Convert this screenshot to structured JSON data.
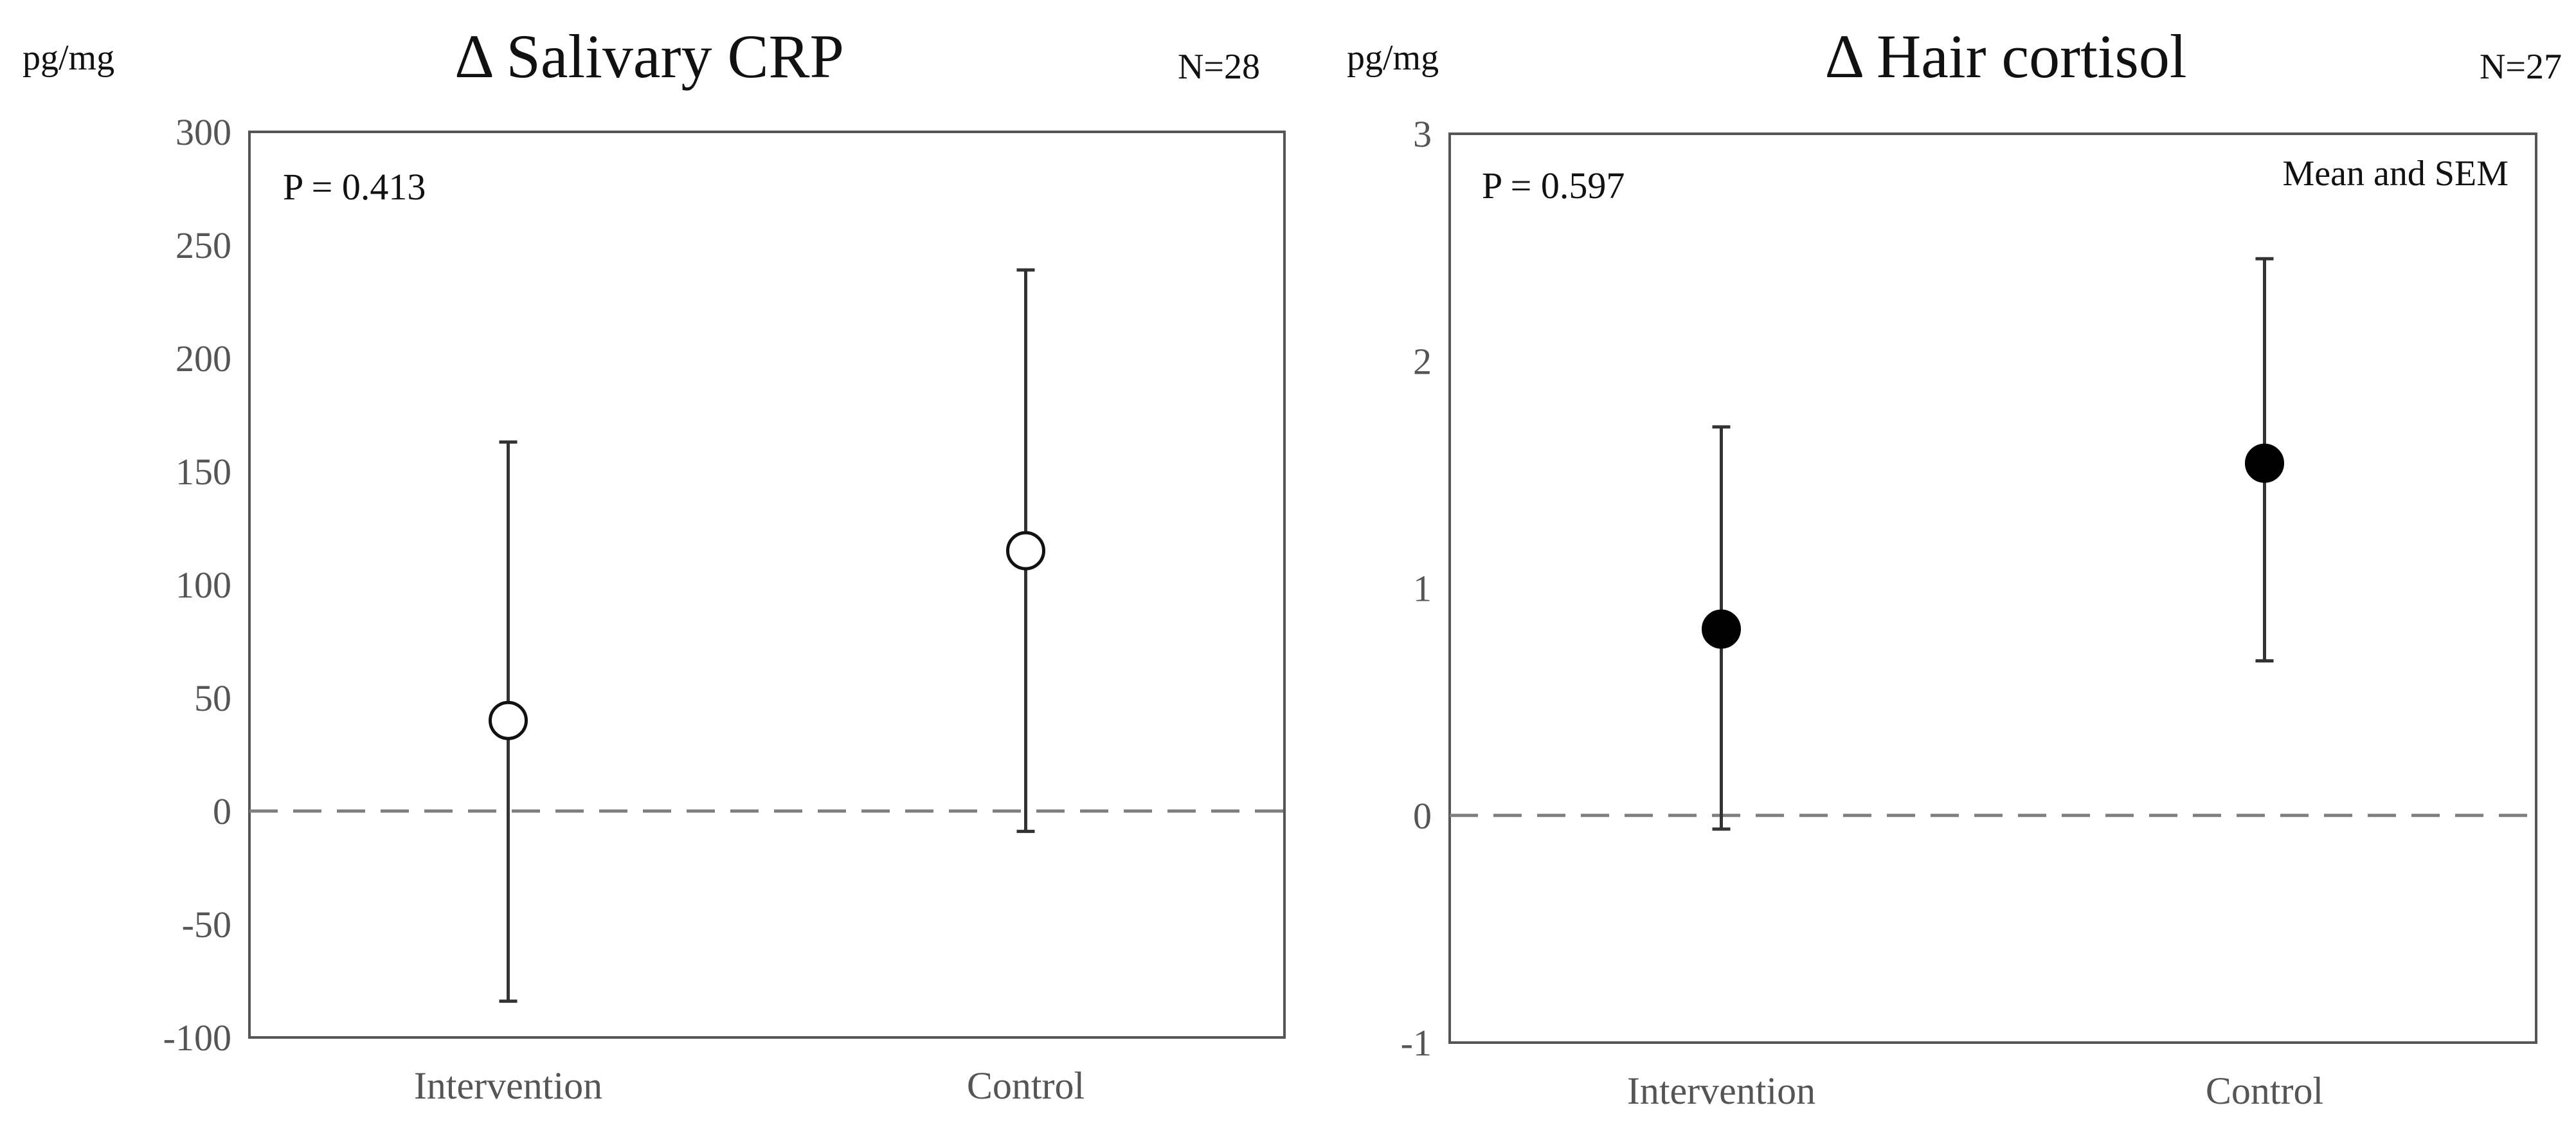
{
  "chart_data": [
    {
      "type": "scatter",
      "title": "Δ Salivary CRP",
      "ylabel": "pg/mg",
      "n_label": "N=28",
      "p_value": "P = 0.413",
      "note": "",
      "categories": [
        "Intervention",
        "Control"
      ],
      "values": [
        40,
        115
      ],
      "err_upper": [
        163,
        239
      ],
      "err_lower": [
        -84,
        -9
      ],
      "ylim": [
        -100,
        300
      ],
      "yticks": [
        300,
        250,
        200,
        150,
        100,
        50,
        0,
        -50,
        -100
      ],
      "reference_line": 0,
      "marker_fill": "#ffffff",
      "marker_stroke": "#111111",
      "grid": false
    },
    {
      "type": "scatter",
      "title": "Δ Hair cortisol",
      "ylabel": "pg/mg",
      "n_label": "N=27",
      "p_value": "P = 0.597",
      "note": "Mean and SEM",
      "categories": [
        "Intervention",
        "Control"
      ],
      "values": [
        0.82,
        1.55
      ],
      "err_upper": [
        1.71,
        2.45
      ],
      "err_lower": [
        -0.06,
        0.68
      ],
      "ylim": [
        -1,
        3
      ],
      "yticks": [
        3,
        2,
        1,
        0,
        -1
      ],
      "reference_line": 0,
      "marker_fill": "#000000",
      "marker_stroke": "#000000",
      "grid": false
    }
  ],
  "colors": {
    "axis": "#555555",
    "errorbar": "#333333",
    "dashed_line": "#7f7f7f",
    "text": "#111111"
  }
}
